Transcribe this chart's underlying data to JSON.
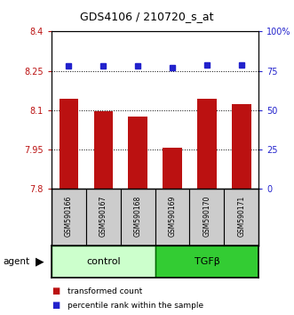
{
  "title": "GDS4106 / 210720_s_at",
  "samples": [
    "GSM590166",
    "GSM590167",
    "GSM590168",
    "GSM590169",
    "GSM590170",
    "GSM590171"
  ],
  "bar_values": [
    8.145,
    8.095,
    8.075,
    7.958,
    8.145,
    8.125
  ],
  "percentile_values": [
    78,
    78,
    78,
    77,
    79,
    79
  ],
  "ylim_left": [
    7.8,
    8.4
  ],
  "ylim_right": [
    0,
    100
  ],
  "yticks_left": [
    7.8,
    7.95,
    8.1,
    8.25,
    8.4
  ],
  "ytick_labels_left": [
    "7.8",
    "7.95",
    "8.1",
    "8.25",
    "8.4"
  ],
  "yticks_right": [
    0,
    25,
    50,
    75,
    100
  ],
  "ytick_labels_right": [
    "0",
    "25",
    "50",
    "75",
    "100%"
  ],
  "grid_yticks": [
    7.95,
    8.1,
    8.25
  ],
  "bar_color": "#bb1111",
  "point_color": "#2222cc",
  "groups": [
    {
      "label": "control",
      "samples_count": 3,
      "color": "#ccffcc",
      "edge_color": "#006600"
    },
    {
      "label": "TGFβ",
      "samples_count": 3,
      "color": "#33cc33",
      "edge_color": "#006600"
    }
  ],
  "legend_items": [
    {
      "label": "transformed count",
      "color": "#bb1111"
    },
    {
      "label": "percentile rank within the sample",
      "color": "#2222cc"
    }
  ],
  "agent_label": "agent",
  "bar_width": 0.55,
  "sample_box_color": "#cccccc",
  "sample_box_edge": "#000000"
}
